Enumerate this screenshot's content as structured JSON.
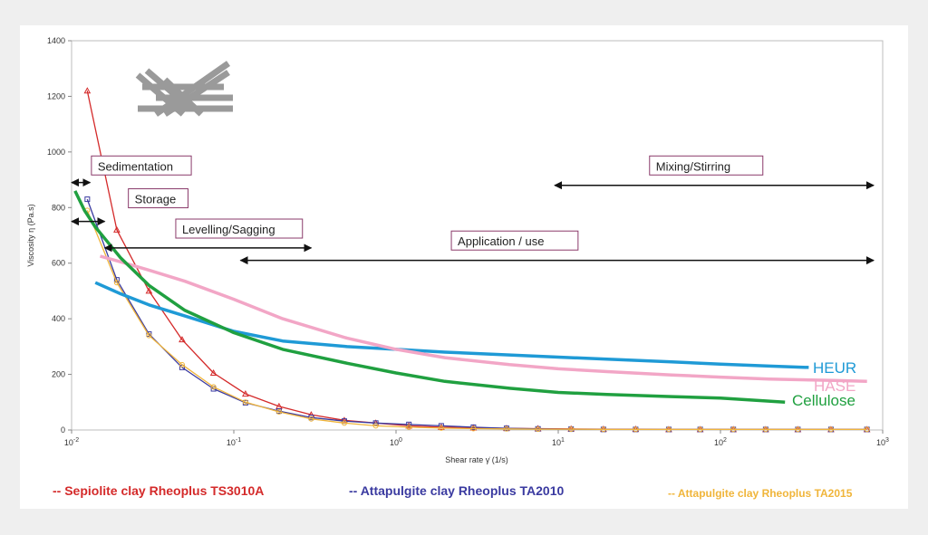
{
  "chart_data": {
    "type": "line",
    "xscale": "log",
    "xlim": [
      0.01,
      1000
    ],
    "ylim": [
      0,
      1400
    ],
    "xlabel": "Shear rate γ̇ (1/s)",
    "ylabel": "Viscosity η (Pa.s)",
    "x_ticks": [
      {
        "value": 0.01,
        "base": "10",
        "exp": "-2"
      },
      {
        "value": 0.1,
        "base": "10",
        "exp": "-1"
      },
      {
        "value": 1,
        "base": "10",
        "exp": "0"
      },
      {
        "value": 10,
        "base": "10",
        "exp": "1"
      },
      {
        "value": 100,
        "base": "10",
        "exp": "2"
      },
      {
        "value": 1000,
        "base": "10",
        "exp": "3"
      }
    ],
    "y_ticks": [
      "0",
      "200",
      "400",
      "600",
      "800",
      "1000",
      "1200",
      "1400"
    ],
    "series": [
      {
        "name": "Sepiolite clay Rheoplus TS3010A",
        "legend": "-- Sepiolite clay Rheoplus TS3010A",
        "color": "#d42a2a",
        "marker": "triangle",
        "x": [
          0.0125,
          0.019,
          0.03,
          0.048,
          0.075,
          0.118,
          0.19,
          0.3,
          0.48,
          0.75,
          1.2,
          1.9,
          3,
          4.8,
          7.5,
          12,
          19,
          30,
          48,
          75,
          120,
          190,
          300,
          480,
          800
        ],
        "y": [
          1220,
          720,
          500,
          325,
          205,
          130,
          85,
          55,
          35,
          25,
          15,
          10,
          8,
          6,
          5,
          4,
          3,
          3,
          2,
          2,
          2,
          2,
          2,
          2,
          2
        ]
      },
      {
        "name": "Attapulgite clay Rheoplus TA2010",
        "legend": "-- Attapulgite clay Rheoplus TA2010",
        "color": "#3a3aa0",
        "marker": "square",
        "x": [
          0.0125,
          0.019,
          0.03,
          0.048,
          0.075,
          0.118,
          0.19,
          0.3,
          0.48,
          0.75,
          1.2,
          1.9,
          3,
          4.8,
          7.5,
          12,
          19,
          30,
          48,
          75,
          120,
          190,
          300,
          480,
          800
        ],
        "y": [
          830,
          540,
          345,
          225,
          148,
          98,
          68,
          45,
          32,
          25,
          20,
          15,
          10,
          6,
          4,
          3,
          2,
          2,
          2,
          2,
          2,
          2,
          2,
          2,
          2
        ]
      },
      {
        "name": "Attapulgite clay Rheoplus TA2015",
        "legend": "-- Attapulgite clay Rheoplus TA2015",
        "color": "#f0b53a",
        "marker": "circle",
        "x": [
          0.0125,
          0.019,
          0.03,
          0.048,
          0.075,
          0.118,
          0.19,
          0.3,
          0.48,
          0.75,
          1.2,
          1.9,
          3,
          4.8,
          7.5,
          12,
          19,
          30,
          48,
          75,
          120,
          190,
          300,
          480,
          800
        ],
        "y": [
          790,
          530,
          340,
          235,
          155,
          100,
          65,
          40,
          25,
          15,
          10,
          7,
          5,
          4,
          3,
          3,
          2,
          2,
          2,
          2,
          2,
          2,
          2,
          2,
          2
        ]
      },
      {
        "name": "HEUR",
        "color": "#1f9ad6",
        "x": [
          0.014,
          0.02,
          0.03,
          0.05,
          0.1,
          0.2,
          0.5,
          1,
          2,
          5,
          10,
          20,
          50,
          100,
          200,
          350
        ],
        "y": [
          530,
          490,
          450,
          410,
          355,
          320,
          300,
          290,
          280,
          270,
          262,
          255,
          245,
          237,
          230,
          225
        ]
      },
      {
        "name": "HASE",
        "color": "#f2a6c6",
        "x": [
          0.015,
          0.02,
          0.03,
          0.05,
          0.1,
          0.2,
          0.5,
          1,
          2,
          5,
          10,
          20,
          50,
          100,
          200,
          500,
          800
        ],
        "y": [
          625,
          605,
          575,
          535,
          470,
          400,
          330,
          290,
          260,
          235,
          220,
          210,
          198,
          190,
          183,
          178,
          175
        ]
      },
      {
        "name": "Cellulose",
        "color": "#20a040",
        "x": [
          0.0105,
          0.012,
          0.014,
          0.017,
          0.02,
          0.03,
          0.05,
          0.1,
          0.2,
          0.5,
          1,
          2,
          5,
          10,
          20,
          50,
          100,
          250
        ],
        "y": [
          860,
          790,
          730,
          670,
          620,
          520,
          430,
          350,
          290,
          240,
          205,
          175,
          150,
          135,
          128,
          120,
          115,
          100
        ]
      }
    ],
    "annotations": [
      {
        "label": "Sedimentation",
        "x_from": 0.01,
        "x_to": 0.013,
        "y": 890,
        "labelX": 0.0145,
        "labelY": 940
      },
      {
        "label": "Storage",
        "x_from": 0.01,
        "x_to": 0.016,
        "y": 750,
        "labelX": 0.0245,
        "labelY": 822
      },
      {
        "label": "Levelling/Sagging",
        "x_from": 0.016,
        "x_to": 0.3,
        "y": 655,
        "labelX": 0.048,
        "labelY": 713
      },
      {
        "label": "Application / use",
        "x_from": 0.11,
        "x_to": 880,
        "y": 610,
        "labelX": 2.4,
        "labelY": 670
      },
      {
        "label": "Mixing/Stirring",
        "x_from": 9.5,
        "x_to": 880,
        "y": 880,
        "labelX": 40,
        "labelY": 940
      }
    ]
  }
}
